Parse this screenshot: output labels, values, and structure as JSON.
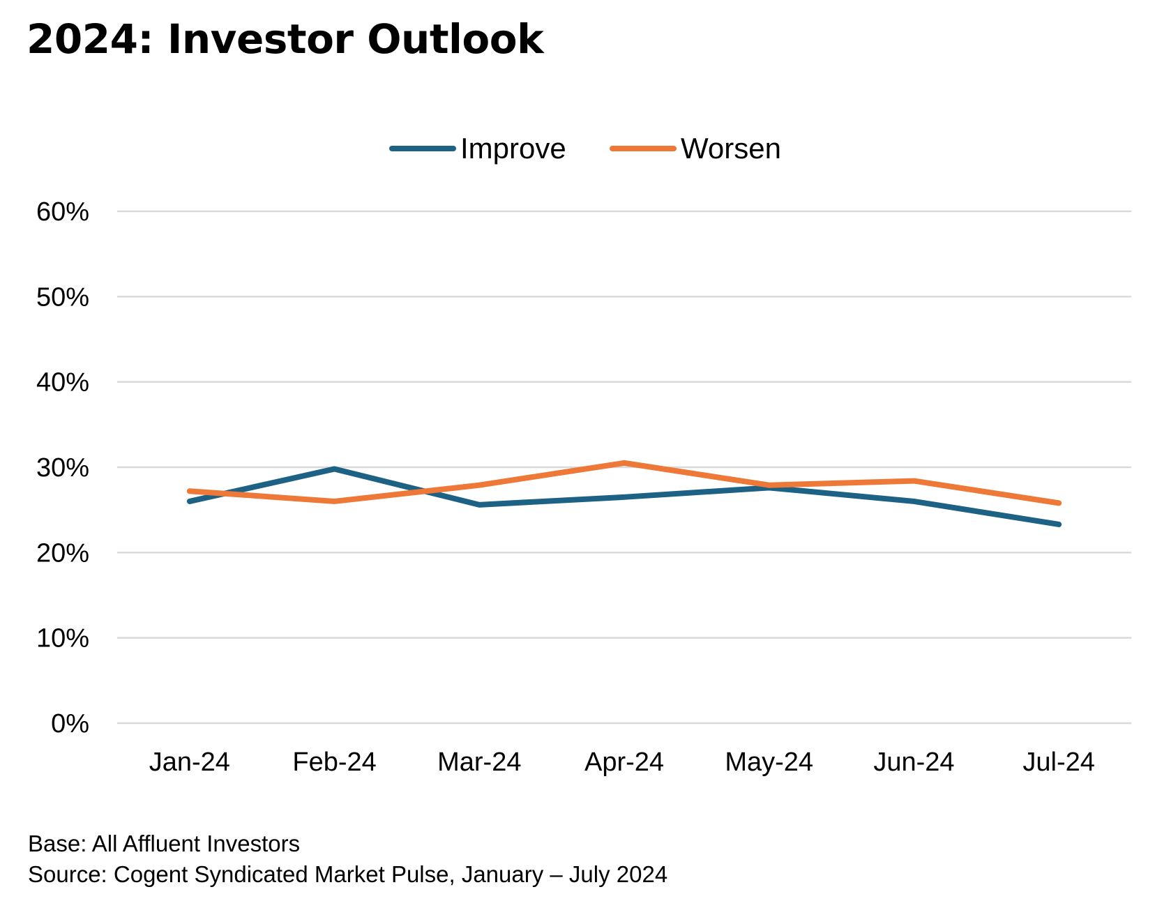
{
  "chart_data": {
    "type": "line",
    "title": "2024: Investor Outlook",
    "categories": [
      "Jan-24",
      "Feb-24",
      "Mar-24",
      "Apr-24",
      "May-24",
      "Jun-24",
      "Jul-24"
    ],
    "series": [
      {
        "name": "Improve",
        "color": "#1d6184",
        "values": [
          26,
          29.8,
          25.6,
          26.5,
          27.6,
          26,
          23.3
        ]
      },
      {
        "name": "Worsen",
        "color": "#ee7838",
        "values": [
          27.2,
          26,
          27.9,
          30.5,
          27.9,
          28.4,
          25.8
        ]
      }
    ],
    "ylim": [
      0,
      60
    ],
    "yticks": [
      0,
      10,
      20,
      30,
      40,
      50,
      60
    ],
    "ytick_labels": [
      "0%",
      "10%",
      "20%",
      "30%",
      "40%",
      "50%",
      "60%"
    ],
    "grid": true,
    "gridline_color": "#d9d9d9",
    "legend": "top-center"
  },
  "footnotes": {
    "base": "Base: All Affluent Investors",
    "source": "Source: Cogent Syndicated Market Pulse, January – July 2024"
  }
}
